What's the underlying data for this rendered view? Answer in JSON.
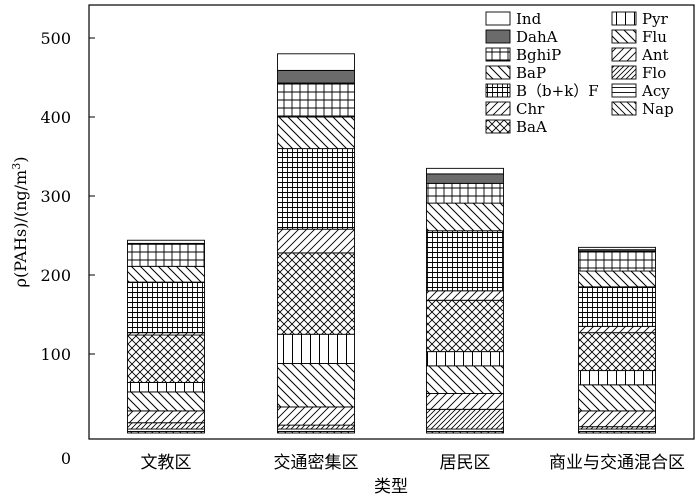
{
  "chart_data": {
    "type": "bar",
    "stacked": true,
    "title": "",
    "xlabel": "类型",
    "ylabel_text": "ρ(PAHs)/(ng/m",
    "ylabel_sup": "3",
    "ylabel_close": ")",
    "ylim": [
      0,
      550
    ],
    "yticks": [
      0,
      100,
      200,
      300,
      400,
      500
    ],
    "grid": false,
    "legend_position": "top-right",
    "categories": [
      "文教区",
      "交通密集区",
      "居民区",
      "商业与交通混合区"
    ],
    "series": [
      {
        "name": "Nap",
        "pattern": "diag-down",
        "values": [
          2,
          2,
          2,
          2
        ]
      },
      {
        "name": "Acy",
        "pattern": "hlines",
        "values": [
          3,
          3,
          3,
          3
        ]
      },
      {
        "name": "Flo",
        "pattern": "diag-up-dense",
        "values": [
          8,
          5,
          25,
          3
        ]
      },
      {
        "name": "Ant",
        "pattern": "diag-up",
        "values": [
          15,
          23,
          20,
          20
        ]
      },
      {
        "name": "Flu",
        "pattern": "diag-down-wide",
        "values": [
          24,
          55,
          35,
          33
        ]
      },
      {
        "name": "Pyr",
        "pattern": "vlines",
        "values": [
          12,
          37,
          18,
          18
        ]
      },
      {
        "name": "BaA",
        "pattern": "crosshatch",
        "values": [
          60,
          103,
          65,
          48
        ]
      },
      {
        "name": "Chr",
        "pattern": "diag-up",
        "values": [
          3,
          30,
          12,
          8
        ]
      },
      {
        "name": "B（b+k）F",
        "pattern": "grid-dense",
        "values": [
          64,
          102,
          76,
          50
        ]
      },
      {
        "name": "BaP",
        "pattern": "diag-down-wide",
        "values": [
          20,
          40,
          35,
          20
        ]
      },
      {
        "name": "BghiP",
        "pattern": "grid",
        "values": [
          28,
          43,
          25,
          25
        ]
      },
      {
        "name": "DahA",
        "pattern": "solid-gray",
        "values": [
          1,
          16,
          12,
          2
        ]
      },
      {
        "name": "Ind",
        "pattern": "white",
        "values": [
          4,
          21,
          7,
          3
        ]
      }
    ]
  }
}
